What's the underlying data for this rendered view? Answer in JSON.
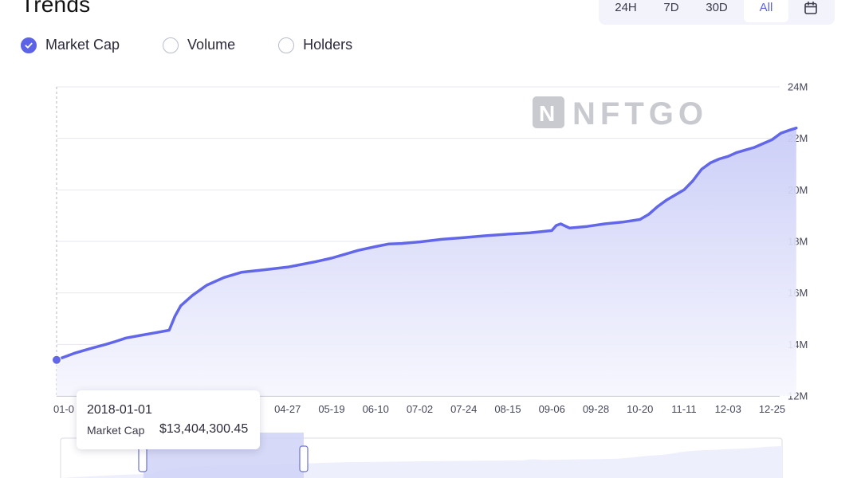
{
  "header": {
    "title": "Trends",
    "ranges": [
      {
        "label": "24H",
        "active": false
      },
      {
        "label": "7D",
        "active": false
      },
      {
        "label": "30D",
        "active": false
      },
      {
        "label": "All",
        "active": true
      }
    ],
    "calendar_icon": "calendar-icon"
  },
  "metrics": [
    {
      "label": "Market Cap",
      "checked": true
    },
    {
      "label": "Volume",
      "checked": false
    },
    {
      "label": "Holders",
      "checked": false
    }
  ],
  "watermark": "NFTGO",
  "tooltip": {
    "date": "2018-01-01",
    "label": "Market Cap",
    "value": "$13,404,300.45"
  },
  "colors": {
    "accent": "#5c63e6",
    "line": "#6167e8",
    "area_top": "#c9ccf7",
    "area_bottom": "#f6f6fe",
    "grid": "#e6e7ee",
    "tick": "#44465a",
    "watermark": "#c9cad0"
  },
  "chart_data": {
    "type": "area",
    "ylim": [
      12,
      24
    ],
    "y_ticks": [
      "24M",
      "22M",
      "20M",
      "18M",
      "16M",
      "14M",
      "12M"
    ],
    "x_ticks": [
      "01-0",
      "04-27",
      "05-19",
      "06-10",
      "07-02",
      "07-24",
      "08-15",
      "09-06",
      "09-28",
      "10-20",
      "11-11",
      "12-03",
      "12-25"
    ],
    "x_tick_index": [
      0,
      4,
      5,
      6,
      7,
      8,
      9,
      10,
      11,
      12,
      13,
      14,
      15
    ],
    "series": [
      {
        "values": [
          [
            0.0,
            13.4
          ],
          [
            0.3,
            13.65
          ],
          [
            0.6,
            13.85
          ],
          [
            0.85,
            14.0
          ],
          [
            1.0,
            14.1
          ],
          [
            1.2,
            14.25
          ],
          [
            1.45,
            14.35
          ],
          [
            1.7,
            14.45
          ],
          [
            1.95,
            14.55
          ],
          [
            2.05,
            15.1
          ],
          [
            2.15,
            15.5
          ],
          [
            2.35,
            15.9
          ],
          [
            2.6,
            16.3
          ],
          [
            2.9,
            16.6
          ],
          [
            3.2,
            16.8
          ],
          [
            3.6,
            16.9
          ],
          [
            4.0,
            17.0
          ],
          [
            4.3,
            17.1
          ],
          [
            4.6,
            17.2
          ],
          [
            5.0,
            17.35
          ],
          [
            5.3,
            17.5
          ],
          [
            5.6,
            17.65
          ],
          [
            6.0,
            17.8
          ],
          [
            6.3,
            17.9
          ],
          [
            6.6,
            17.92
          ],
          [
            7.0,
            17.98
          ],
          [
            7.5,
            18.08
          ],
          [
            8.0,
            18.15
          ],
          [
            8.5,
            18.22
          ],
          [
            9.0,
            18.28
          ],
          [
            9.5,
            18.33
          ],
          [
            10.0,
            18.42
          ],
          [
            10.1,
            18.62
          ],
          [
            10.2,
            18.68
          ],
          [
            10.4,
            18.52
          ],
          [
            10.8,
            18.58
          ],
          [
            11.2,
            18.68
          ],
          [
            11.6,
            18.75
          ],
          [
            12.0,
            18.85
          ],
          [
            12.2,
            19.05
          ],
          [
            12.4,
            19.35
          ],
          [
            12.6,
            19.6
          ],
          [
            12.8,
            19.8
          ],
          [
            13.0,
            20.0
          ],
          [
            13.2,
            20.35
          ],
          [
            13.4,
            20.8
          ],
          [
            13.6,
            21.05
          ],
          [
            13.8,
            21.2
          ],
          [
            14.0,
            21.3
          ],
          [
            14.2,
            21.45
          ],
          [
            14.4,
            21.55
          ],
          [
            14.6,
            21.65
          ],
          [
            14.8,
            21.8
          ],
          [
            15.0,
            21.95
          ],
          [
            15.2,
            22.2
          ],
          [
            15.4,
            22.32
          ],
          [
            15.55,
            22.4
          ]
        ]
      }
    ],
    "grid": true,
    "has_navigator": true
  }
}
